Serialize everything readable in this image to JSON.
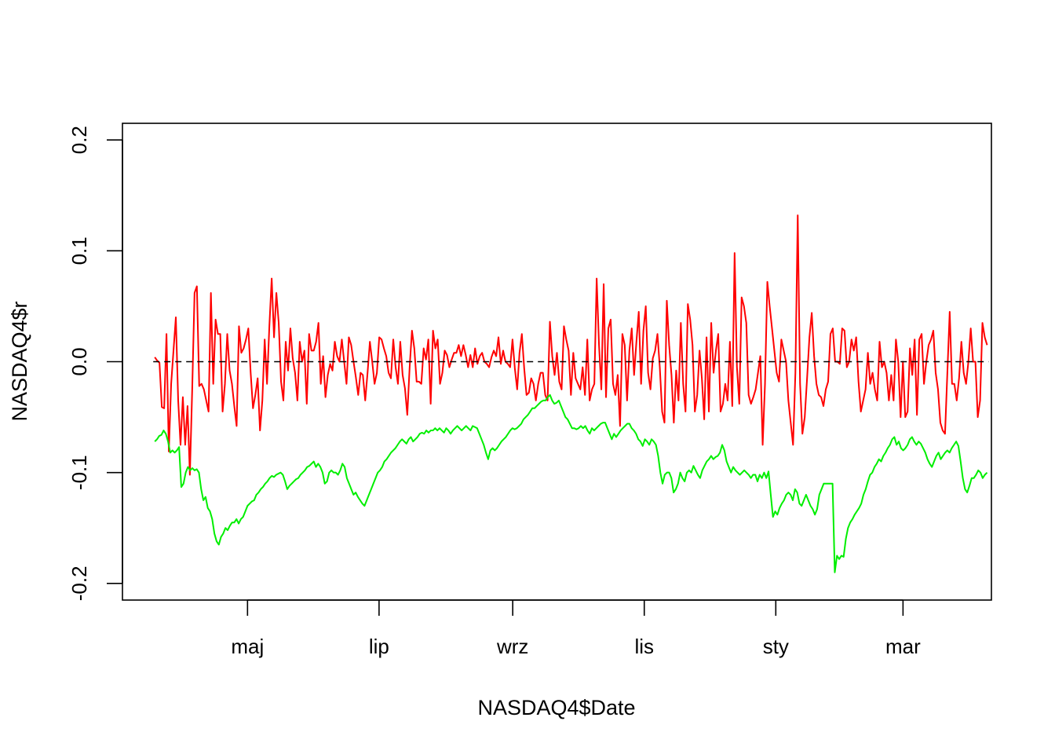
{
  "chart_data": {
    "type": "line",
    "title": "",
    "xlabel": "NASDAQ4$Date",
    "ylabel": "NASDAQ4$r",
    "x_ticks": [
      "maj",
      "lip",
      "wrz",
      "lis",
      "sty",
      "mar"
    ],
    "x_tick_dates": [
      "2018-05-01",
      "2018-07-01",
      "2018-09-01",
      "2018-11-01",
      "2019-01-01",
      "2019-03-01"
    ],
    "xlim": [
      "2018-03-04",
      "2019-04-11"
    ],
    "ylim": [
      -0.215,
      0.215
    ],
    "y_ticks": [
      "-0.2",
      "-0.1",
      "0.0",
      "0.1",
      "0.2"
    ],
    "y_tick_values": [
      -0.2,
      -0.1,
      0.0,
      0.1,
      0.2
    ],
    "reference_line": {
      "y": 0.0,
      "style": "dashed",
      "color": "#000000"
    },
    "grid": false,
    "legend": "none",
    "series": [
      {
        "color": "#ff0000",
        "start_date": "2018-03-19",
        "end_date": "2019-04-09",
        "values": [
          0.004,
          0.001,
          -0.001,
          -0.041,
          -0.042,
          0.025,
          -0.081,
          -0.02,
          0.01,
          0.04,
          -0.035,
          -0.075,
          -0.032,
          -0.075,
          -0.04,
          -0.102,
          -0.025,
          0.062,
          0.068,
          -0.022,
          -0.02,
          -0.025,
          -0.035,
          -0.045,
          0.062,
          -0.02,
          0.038,
          0.025,
          0.025,
          -0.045,
          -0.02,
          0.025,
          -0.008,
          -0.02,
          -0.04,
          -0.058,
          0.032,
          0.008,
          0.012,
          0.02,
          0.03,
          -0.01,
          -0.042,
          -0.03,
          -0.015,
          -0.062,
          -0.035,
          0.02,
          -0.02,
          0.032,
          0.075,
          0.022,
          0.062,
          0.035,
          -0.018,
          -0.035,
          0.018,
          -0.008,
          0.03,
          0.003,
          -0.01,
          -0.035,
          0.018,
          0.0,
          0.01,
          -0.038,
          0.025,
          0.01,
          0.01,
          0.018,
          0.035,
          -0.02,
          0.005,
          -0.032,
          -0.012,
          -0.002,
          -0.008,
          0.018,
          0.005,
          0.0,
          0.02,
          0.0,
          -0.02,
          0.022,
          0.015,
          0.0,
          -0.014,
          -0.03,
          -0.01,
          -0.012,
          -0.035,
          -0.01,
          0.018,
          0.0,
          -0.02,
          -0.01,
          0.022,
          0.02,
          0.012,
          0.005,
          -0.01,
          -0.015,
          0.02,
          -0.005,
          -0.02,
          0.018,
          -0.012,
          -0.024,
          -0.048,
          -0.005,
          0.028,
          0.012,
          -0.018,
          -0.018,
          -0.02,
          0.012,
          0.002,
          0.02,
          -0.038,
          0.028,
          0.012,
          0.02,
          -0.02,
          -0.01,
          0.01,
          0.006,
          -0.005,
          0.002,
          0.008,
          0.008,
          0.015,
          0.005,
          0.015,
          0.006,
          -0.005,
          0.006,
          -0.005,
          0.012,
          -0.002,
          0.005,
          0.008,
          0.0,
          -0.002,
          -0.005,
          0.004,
          0.01,
          0.005,
          0.022,
          -0.002,
          0.01,
          0.0,
          -0.002,
          -0.005,
          0.02,
          -0.006,
          -0.025,
          0.008,
          0.025,
          -0.006,
          -0.03,
          -0.028,
          -0.015,
          -0.02,
          -0.035,
          -0.02,
          -0.01,
          -0.01,
          -0.03,
          -0.035,
          0.036,
          0.005,
          -0.012,
          0.008,
          -0.018,
          -0.025,
          0.032,
          0.02,
          0.01,
          -0.03,
          0.008,
          -0.015,
          -0.02,
          -0.025,
          -0.005,
          -0.03,
          0.02,
          -0.035,
          -0.025,
          -0.02,
          0.075,
          0.015,
          -0.025,
          0.07,
          -0.032,
          0.03,
          0.038,
          -0.02,
          -0.03,
          -0.012,
          -0.058,
          0.025,
          0.015,
          -0.035,
          0.01,
          0.03,
          -0.012,
          0.018,
          0.045,
          -0.02,
          0.028,
          0.05,
          -0.01,
          -0.025,
          0.003,
          0.01,
          0.025,
          -0.005,
          -0.045,
          -0.055,
          0.055,
          0.015,
          -0.012,
          -0.055,
          -0.008,
          -0.035,
          0.035,
          -0.02,
          -0.045,
          0.052,
          0.038,
          0.015,
          -0.045,
          -0.03,
          0.01,
          -0.015,
          -0.052,
          0.022,
          -0.045,
          0.035,
          -0.01,
          0.01,
          0.025,
          -0.045,
          -0.038,
          -0.02,
          -0.035,
          0.018,
          -0.04,
          0.098,
          -0.005,
          -0.038,
          0.058,
          0.05,
          0.035,
          -0.03,
          -0.038,
          -0.032,
          -0.025,
          -0.01,
          0.005,
          -0.075,
          -0.02,
          0.072,
          0.05,
          0.03,
          0.01,
          -0.01,
          -0.018,
          0.02,
          0.01,
          0.0,
          -0.035,
          -0.055,
          -0.075,
          -0.01,
          0.132,
          -0.02,
          -0.065,
          -0.05,
          -0.015,
          0.022,
          0.044,
          0.005,
          -0.02,
          -0.03,
          -0.032,
          -0.04,
          -0.025,
          -0.018,
          0.025,
          0.03,
          0.0,
          0.0,
          -0.002,
          0.03,
          0.028,
          -0.005,
          0.0,
          0.02,
          0.01,
          0.022,
          -0.018,
          -0.045,
          -0.035,
          -0.025,
          0.008,
          -0.02,
          -0.01,
          -0.025,
          -0.035,
          0.018,
          -0.005,
          0.0,
          -0.01,
          -0.035,
          -0.012,
          -0.035,
          0.02,
          0.0,
          -0.05,
          0.0,
          -0.05,
          -0.045,
          0.012,
          -0.012,
          0.02,
          -0.048,
          0.02,
          0.025,
          -0.02,
          0.0,
          0.015,
          0.02,
          0.028,
          -0.01,
          -0.025,
          -0.055,
          -0.062,
          -0.065,
          -0.01,
          0.045,
          -0.02,
          -0.02,
          -0.035,
          -0.015,
          0.018,
          -0.01,
          -0.02,
          0.0,
          0.03,
          0.0,
          0.0,
          -0.05,
          -0.035,
          0.035,
          0.022,
          0.015
        ]
      },
      {
        "color": "#00ee00",
        "start_date": "2018-03-19",
        "end_date": "2019-04-09",
        "values": [
          -0.072,
          -0.07,
          -0.067,
          -0.066,
          -0.062,
          -0.065,
          -0.072,
          -0.082,
          -0.08,
          -0.082,
          -0.08,
          -0.077,
          -0.113,
          -0.11,
          -0.1,
          -0.095,
          -0.098,
          -0.096,
          -0.098,
          -0.097,
          -0.1,
          -0.115,
          -0.125,
          -0.122,
          -0.132,
          -0.135,
          -0.142,
          -0.155,
          -0.162,
          -0.165,
          -0.158,
          -0.155,
          -0.15,
          -0.152,
          -0.148,
          -0.145,
          -0.145,
          -0.142,
          -0.146,
          -0.142,
          -0.14,
          -0.135,
          -0.13,
          -0.128,
          -0.126,
          -0.125,
          -0.12,
          -0.118,
          -0.115,
          -0.113,
          -0.11,
          -0.108,
          -0.105,
          -0.103,
          -0.104,
          -0.102,
          -0.101,
          -0.1,
          -0.102,
          -0.108,
          -0.115,
          -0.112,
          -0.11,
          -0.108,
          -0.106,
          -0.105,
          -0.102,
          -0.1,
          -0.098,
          -0.095,
          -0.094,
          -0.092,
          -0.09,
          -0.095,
          -0.092,
          -0.095,
          -0.1,
          -0.11,
          -0.108,
          -0.1,
          -0.098,
          -0.1,
          -0.1,
          -0.102,
          -0.098,
          -0.092,
          -0.095,
          -0.105,
          -0.11,
          -0.115,
          -0.12,
          -0.118,
          -0.122,
          -0.125,
          -0.128,
          -0.13,
          -0.125,
          -0.12,
          -0.115,
          -0.11,
          -0.105,
          -0.1,
          -0.098,
          -0.095,
          -0.09,
          -0.088,
          -0.085,
          -0.082,
          -0.08,
          -0.078,
          -0.075,
          -0.072,
          -0.07,
          -0.072,
          -0.074,
          -0.07,
          -0.068,
          -0.072,
          -0.07,
          -0.068,
          -0.065,
          -0.064,
          -0.065,
          -0.062,
          -0.064,
          -0.062,
          -0.062,
          -0.06,
          -0.062,
          -0.06,
          -0.062,
          -0.064,
          -0.06,
          -0.062,
          -0.065,
          -0.062,
          -0.06,
          -0.058,
          -0.06,
          -0.062,
          -0.06,
          -0.058,
          -0.06,
          -0.062,
          -0.058,
          -0.059,
          -0.06,
          -0.065,
          -0.07,
          -0.075,
          -0.082,
          -0.088,
          -0.08,
          -0.078,
          -0.08,
          -0.078,
          -0.075,
          -0.072,
          -0.07,
          -0.068,
          -0.065,
          -0.062,
          -0.06,
          -0.061,
          -0.06,
          -0.058,
          -0.056,
          -0.052,
          -0.05,
          -0.048,
          -0.045,
          -0.042,
          -0.042,
          -0.04,
          -0.038,
          -0.036,
          -0.035,
          -0.035,
          -0.032,
          -0.03,
          -0.035,
          -0.038,
          -0.037,
          -0.035,
          -0.04,
          -0.045,
          -0.05,
          -0.052,
          -0.056,
          -0.06,
          -0.06,
          -0.061,
          -0.06,
          -0.058,
          -0.06,
          -0.058,
          -0.062,
          -0.065,
          -0.06,
          -0.062,
          -0.06,
          -0.058,
          -0.056,
          -0.055,
          -0.055,
          -0.06,
          -0.065,
          -0.07,
          -0.065,
          -0.068,
          -0.065,
          -0.062,
          -0.06,
          -0.058,
          -0.056,
          -0.056,
          -0.06,
          -0.062,
          -0.065,
          -0.07,
          -0.072,
          -0.076,
          -0.07,
          -0.072,
          -0.075,
          -0.07,
          -0.072,
          -0.075,
          -0.085,
          -0.1,
          -0.11,
          -0.102,
          -0.1,
          -0.1,
          -0.105,
          -0.118,
          -0.115,
          -0.11,
          -0.1,
          -0.105,
          -0.108,
          -0.1,
          -0.098,
          -0.1,
          -0.094,
          -0.098,
          -0.102,
          -0.105,
          -0.098,
          -0.094,
          -0.09,
          -0.088,
          -0.085,
          -0.088,
          -0.086,
          -0.085,
          -0.082,
          -0.075,
          -0.08,
          -0.09,
          -0.095,
          -0.1,
          -0.095,
          -0.098,
          -0.1,
          -0.102,
          -0.1,
          -0.098,
          -0.1,
          -0.102,
          -0.105,
          -0.102,
          -0.102,
          -0.108,
          -0.102,
          -0.105,
          -0.1,
          -0.105,
          -0.099,
          -0.12,
          -0.14,
          -0.135,
          -0.138,
          -0.132,
          -0.128,
          -0.125,
          -0.12,
          -0.118,
          -0.12,
          -0.125,
          -0.115,
          -0.118,
          -0.128,
          -0.13,
          -0.125,
          -0.12,
          -0.125,
          -0.13,
          -0.133,
          -0.138,
          -0.133,
          -0.12,
          -0.115,
          -0.11,
          -0.11,
          -0.11,
          -0.11,
          -0.11,
          -0.19,
          -0.175,
          -0.178,
          -0.175,
          -0.176,
          -0.16,
          -0.15,
          -0.145,
          -0.142,
          -0.138,
          -0.135,
          -0.132,
          -0.128,
          -0.12,
          -0.115,
          -0.108,
          -0.102,
          -0.1,
          -0.095,
          -0.092,
          -0.088,
          -0.09,
          -0.085,
          -0.082,
          -0.078,
          -0.075,
          -0.07,
          -0.068,
          -0.075,
          -0.072,
          -0.078,
          -0.08,
          -0.078,
          -0.075,
          -0.07,
          -0.068,
          -0.072,
          -0.075,
          -0.072,
          -0.074,
          -0.078,
          -0.082,
          -0.088,
          -0.092,
          -0.095,
          -0.09,
          -0.085,
          -0.082,
          -0.088,
          -0.085,
          -0.082,
          -0.08,
          -0.082,
          -0.078,
          -0.075,
          -0.072,
          -0.076,
          -0.09,
          -0.105,
          -0.115,
          -0.118,
          -0.112,
          -0.105,
          -0.105,
          -0.102,
          -0.098,
          -0.1,
          -0.105,
          -0.102,
          -0.1
        ]
      }
    ]
  }
}
